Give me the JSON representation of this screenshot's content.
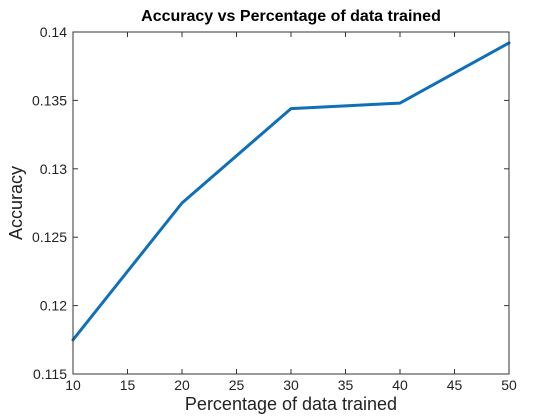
{
  "chart_data": {
    "type": "line",
    "title": "Accuracy vs Percentage of data trained",
    "xlabel": "Percentage of data trained",
    "ylabel": "Accuracy",
    "xlim": [
      10,
      50
    ],
    "ylim": [
      0.115,
      0.14
    ],
    "xticks": [
      10,
      15,
      20,
      25,
      30,
      35,
      40,
      45,
      50
    ],
    "yticks": [
      0.115,
      0.12,
      0.125,
      0.13,
      0.135,
      0.14
    ],
    "ytick_labels": [
      "0.115",
      "0.12",
      "0.125",
      "0.13",
      "0.135",
      "0.14"
    ],
    "grid": false,
    "series": [
      {
        "color": "#0f6fb8",
        "x": [
          10,
          20,
          30,
          40,
          50
        ],
        "y": [
          0.1175,
          0.1275,
          0.1344,
          0.1348,
          0.1392
        ]
      }
    ]
  }
}
